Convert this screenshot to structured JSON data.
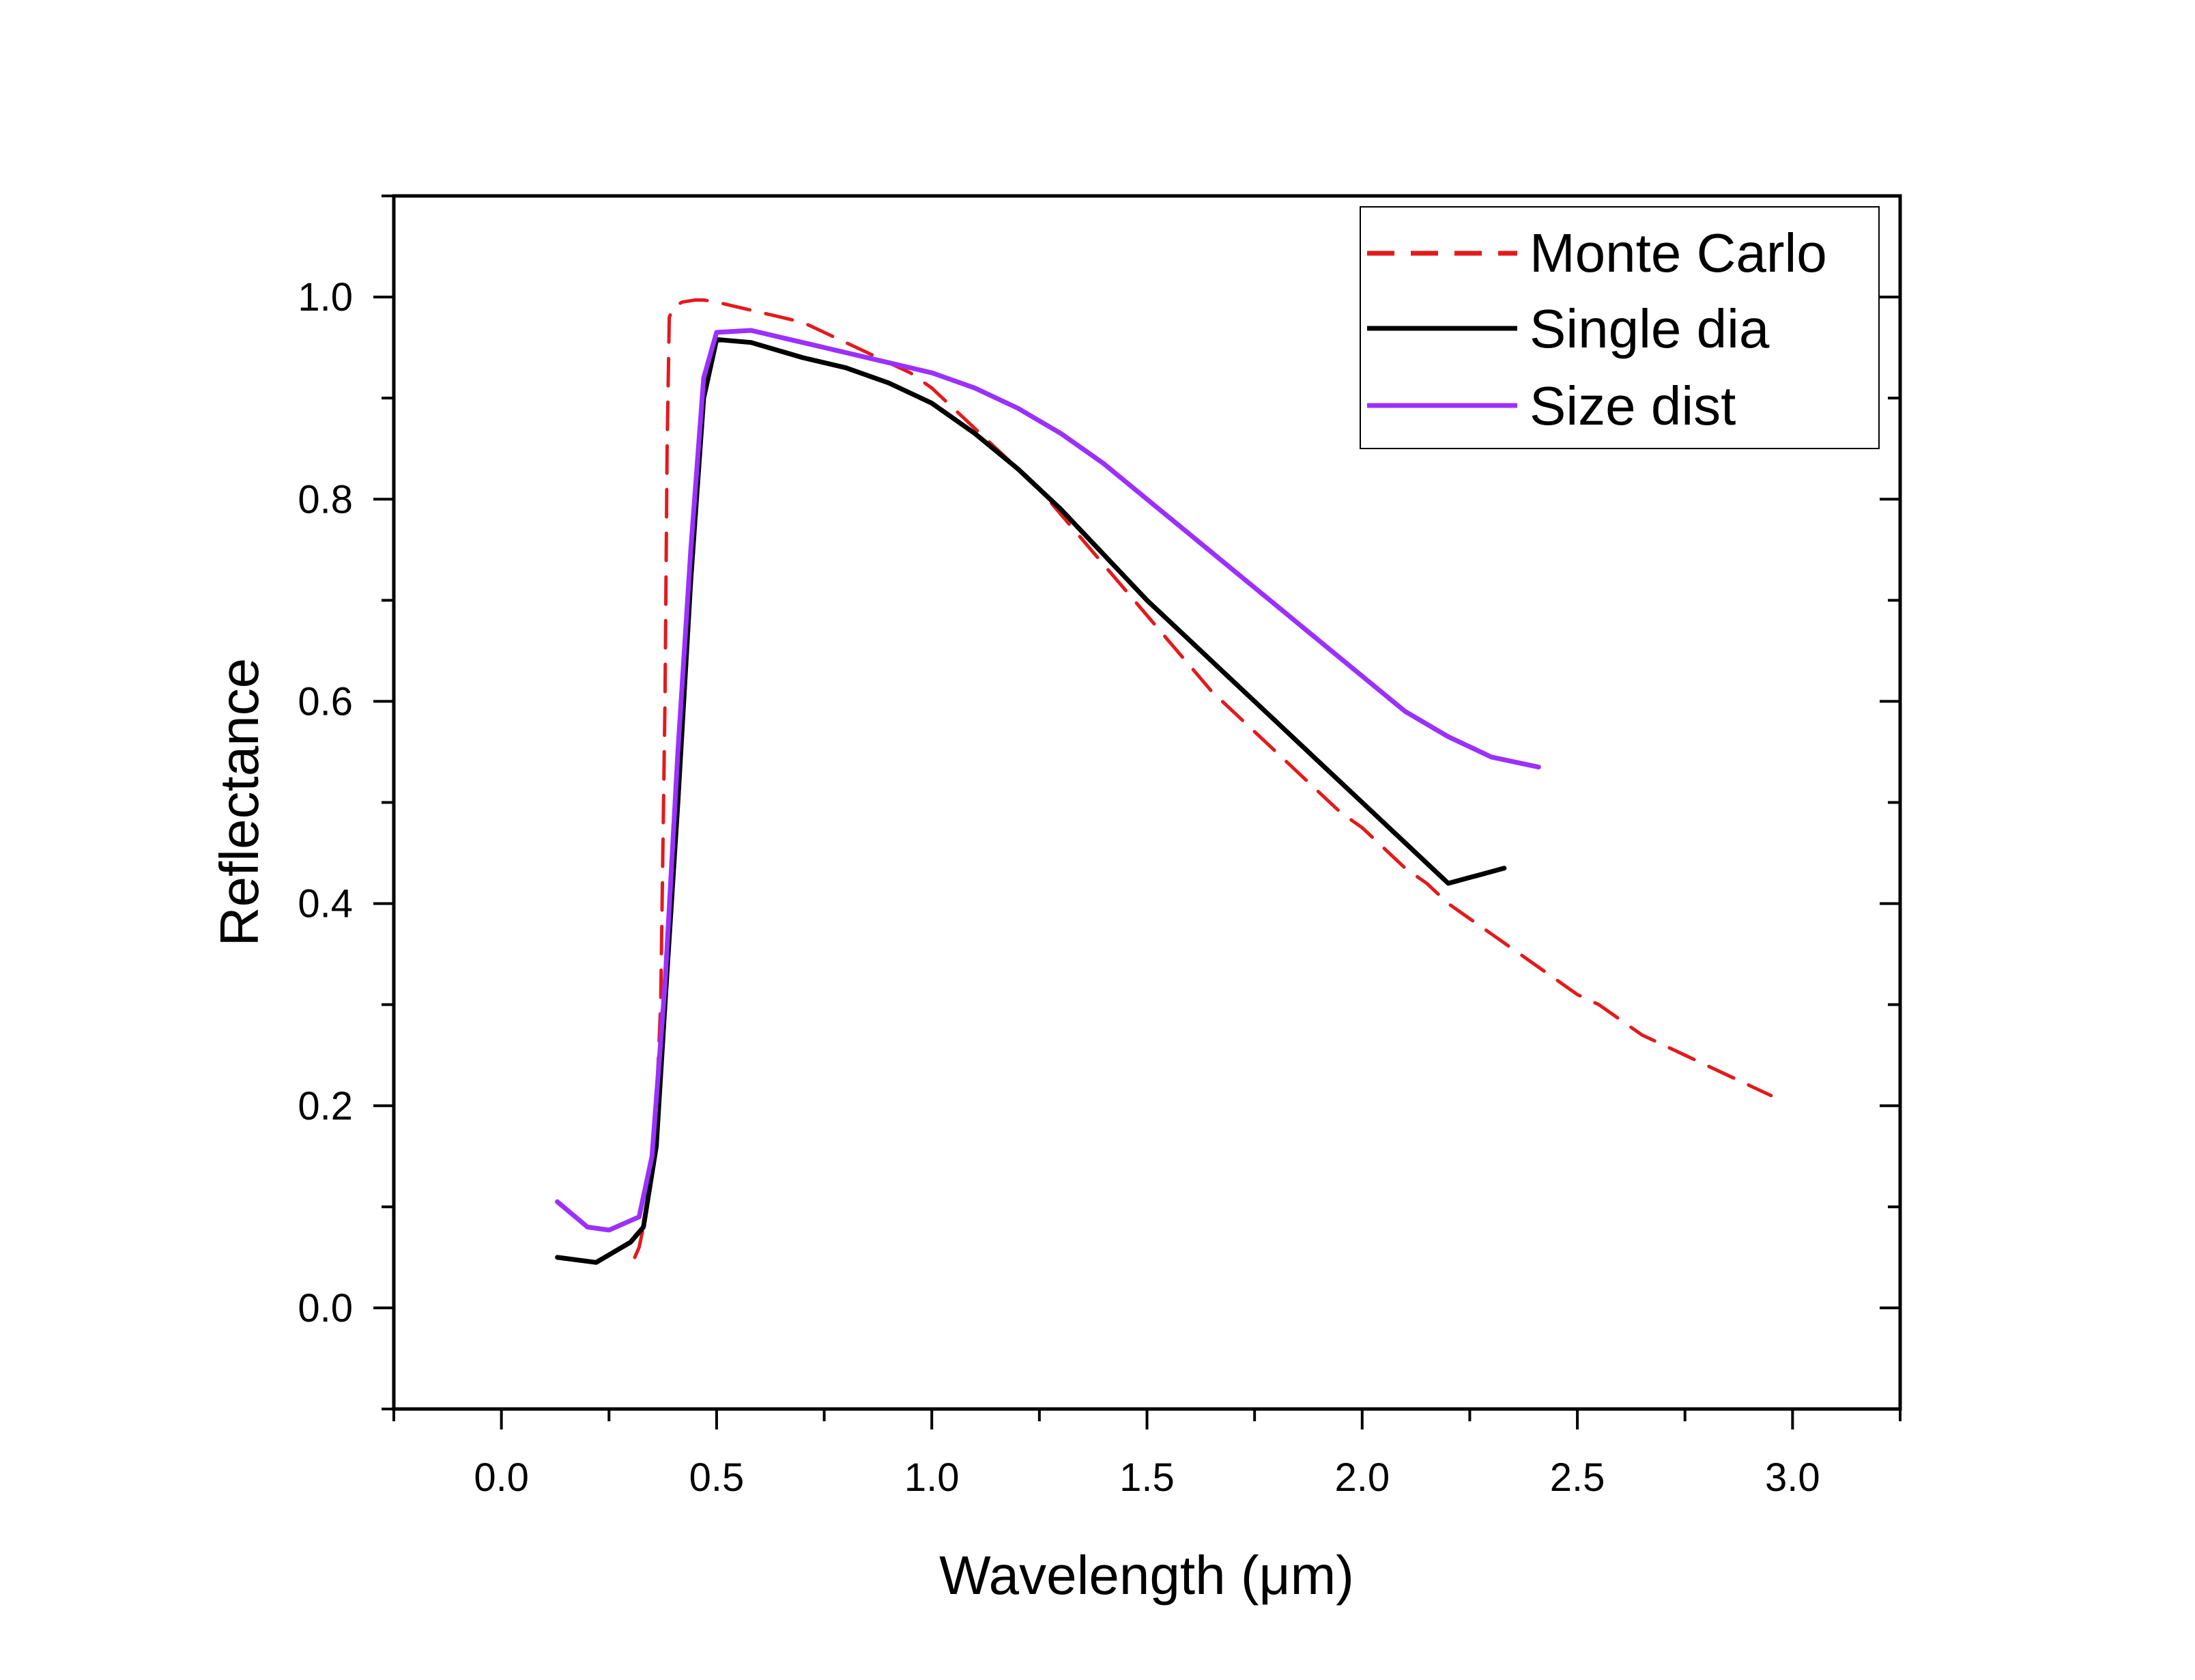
{
  "chart_data": {
    "type": "line",
    "title": "",
    "xlabel": "Wavelength (μm)",
    "ylabel": "Reflectance",
    "xlim": [
      -0.25,
      3.25
    ],
    "ylim": [
      -0.1,
      1.1
    ],
    "xticks": [
      0.0,
      0.5,
      1.0,
      1.5,
      2.0,
      2.5,
      3.0
    ],
    "xtick_labels": [
      "0.0",
      "0.5",
      "1.0",
      "1.5",
      "2.0",
      "2.5",
      "3.0"
    ],
    "yticks": [
      0.0,
      0.2,
      0.4,
      0.6,
      0.8,
      1.0
    ],
    "ytick_labels": [
      "0.0",
      "0.2",
      "0.4",
      "0.6",
      "0.8",
      "1.0"
    ],
    "grid": false,
    "legend_position": "top-right",
    "series": [
      {
        "name": "Monte Carlo",
        "color": "#e31a1c",
        "style": "dashed",
        "x": [
          0.31,
          0.32,
          0.33,
          0.345,
          0.36,
          0.37,
          0.38,
          0.385,
          0.39,
          0.4,
          0.42,
          0.45,
          0.47,
          0.5,
          0.55,
          0.6,
          0.65,
          0.7,
          0.75,
          0.8,
          0.85,
          0.9,
          0.95,
          1.0,
          1.05,
          1.1,
          1.15,
          1.2,
          1.25,
          1.3,
          1.35,
          1.4,
          1.45,
          1.5,
          1.55,
          1.6,
          1.65,
          1.7,
          1.75,
          1.8,
          1.85,
          1.9,
          1.95,
          2.0,
          2.05,
          2.1,
          2.15,
          2.2,
          2.25,
          2.3,
          2.35,
          2.4,
          2.45,
          2.5,
          2.55,
          2.6,
          2.65,
          2.7,
          2.75,
          2.8,
          2.85,
          2.9,
          2.95
        ],
        "values": [
          0.05,
          0.06,
          0.08,
          0.12,
          0.2,
          0.3,
          0.6,
          0.85,
          0.98,
          0.99,
          0.995,
          0.997,
          0.997,
          0.995,
          0.99,
          0.985,
          0.98,
          0.975,
          0.965,
          0.955,
          0.945,
          0.935,
          0.925,
          0.91,
          0.89,
          0.87,
          0.85,
          0.83,
          0.81,
          0.785,
          0.76,
          0.735,
          0.71,
          0.685,
          0.66,
          0.635,
          0.61,
          0.59,
          0.57,
          0.55,
          0.53,
          0.51,
          0.49,
          0.475,
          0.455,
          0.435,
          0.42,
          0.4,
          0.385,
          0.37,
          0.355,
          0.34,
          0.325,
          0.31,
          0.3,
          0.285,
          0.27,
          0.26,
          0.25,
          0.24,
          0.23,
          0.22,
          0.21
        ]
      },
      {
        "name": "Single dia",
        "color": "#000000",
        "style": "solid",
        "x": [
          0.13,
          0.22,
          0.3,
          0.33,
          0.36,
          0.38,
          0.41,
          0.44,
          0.47,
          0.5,
          0.58,
          0.7,
          0.8,
          0.9,
          1.0,
          1.1,
          1.2,
          1.3,
          1.4,
          1.5,
          1.6,
          1.7,
          1.8,
          1.9,
          2.0,
          2.1,
          2.2,
          2.33
        ],
        "values": [
          0.05,
          0.045,
          0.065,
          0.08,
          0.16,
          0.3,
          0.5,
          0.72,
          0.9,
          0.958,
          0.955,
          0.94,
          0.93,
          0.915,
          0.895,
          0.865,
          0.83,
          0.79,
          0.745,
          0.7,
          0.66,
          0.62,
          0.58,
          0.54,
          0.5,
          0.46,
          0.42,
          0.435
        ]
      },
      {
        "name": "Size dist",
        "color": "#9b30ff",
        "style": "solid",
        "x": [
          0.13,
          0.2,
          0.25,
          0.32,
          0.35,
          0.38,
          0.41,
          0.44,
          0.47,
          0.5,
          0.58,
          0.7,
          0.8,
          0.9,
          1.0,
          1.1,
          1.2,
          1.3,
          1.4,
          1.5,
          1.6,
          1.7,
          1.8,
          1.9,
          2.0,
          2.1,
          2.2,
          2.3,
          2.41
        ],
        "values": [
          0.105,
          0.08,
          0.077,
          0.09,
          0.15,
          0.32,
          0.55,
          0.75,
          0.92,
          0.965,
          0.967,
          0.955,
          0.945,
          0.935,
          0.925,
          0.91,
          0.89,
          0.865,
          0.835,
          0.8,
          0.765,
          0.73,
          0.695,
          0.66,
          0.625,
          0.59,
          0.565,
          0.545,
          0.535
        ]
      }
    ]
  }
}
